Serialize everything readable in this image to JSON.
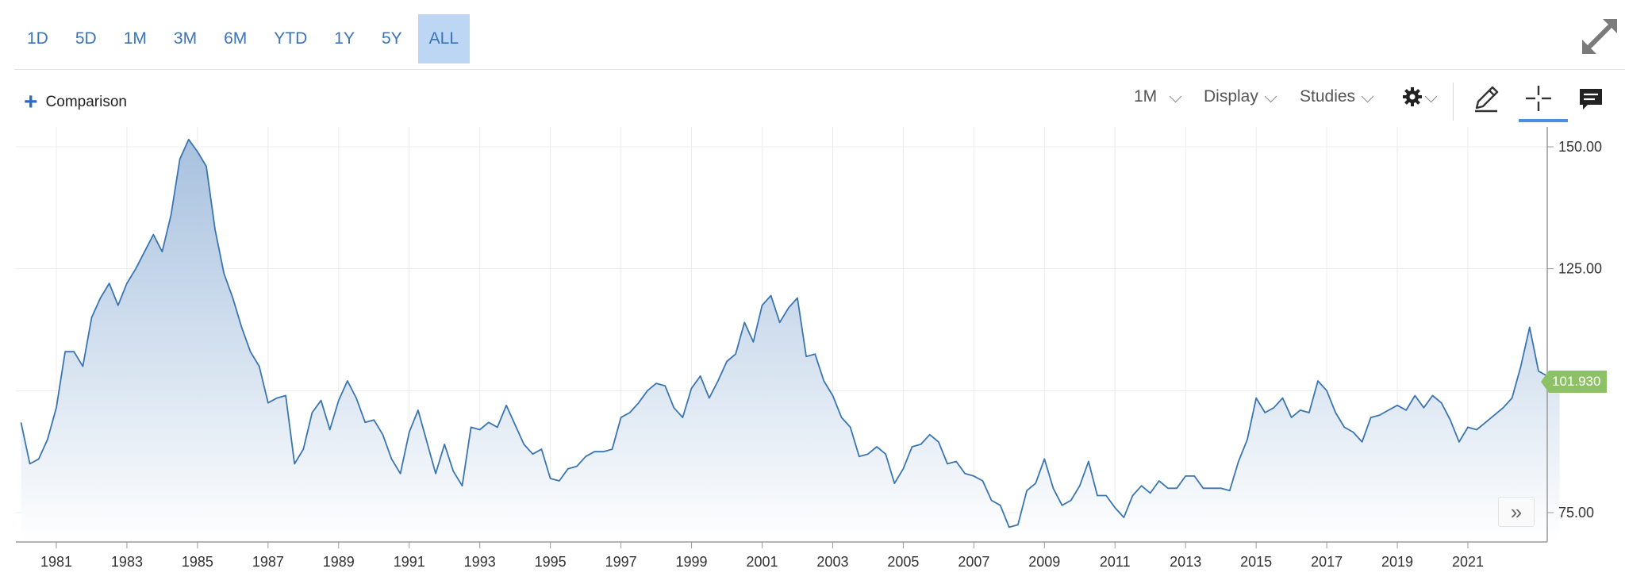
{
  "range_buttons": [
    {
      "label": "1D"
    },
    {
      "label": "5D"
    },
    {
      "label": "1M"
    },
    {
      "label": "3M"
    },
    {
      "label": "6M"
    },
    {
      "label": "YTD"
    },
    {
      "label": "1Y"
    },
    {
      "label": "5Y"
    },
    {
      "label": "ALL",
      "active": true
    }
  ],
  "toolbar": {
    "comparison_label": "Comparison",
    "interval_label": "1M",
    "display_label": "Display",
    "studies_label": "Studies"
  },
  "icons": {
    "expand": "expand-icon",
    "settings": "gear-icon",
    "draw": "pencil-icon",
    "crosshair": "crosshair-icon",
    "comments": "comment-icon",
    "forward": "double-chevron-right-icon"
  },
  "colors": {
    "line": "#3a75b0",
    "fill_top": "#a3bedd",
    "fill_bottom": "#ffffff",
    "accent": "#3b73b9",
    "badge": "#8cc265"
  },
  "last_value_label": "101.930",
  "forward_label": "»",
  "chart_data": {
    "type": "area",
    "title": "",
    "xlabel": "",
    "ylabel": "",
    "x_ticks": [
      "1981",
      "1983",
      "1985",
      "1987",
      "1989",
      "1991",
      "1993",
      "1995",
      "1997",
      "1999",
      "2001",
      "2003",
      "2005",
      "2007",
      "2009",
      "2011",
      "2013",
      "2015",
      "2017",
      "2019",
      "2021"
    ],
    "y_ticks": [
      "150.00",
      "125.00",
      "75.00"
    ],
    "y_range": [
      70,
      155
    ],
    "x_range": [
      1980.0,
      2023.6
    ],
    "grid": true,
    "last_value": 101.93,
    "series": [
      {
        "x": [
          1980.0,
          1980.25,
          1980.5,
          1980.75,
          1981.0,
          1981.25,
          1981.5,
          1981.75,
          1982.0,
          1982.25,
          1982.5,
          1982.75,
          1983.0,
          1983.25,
          1983.5,
          1983.75,
          1984.0,
          1984.25,
          1984.5,
          1984.75,
          1985.0,
          1985.25,
          1985.5,
          1985.75,
          1986.0,
          1986.25,
          1986.5,
          1986.75,
          1987.0,
          1987.25,
          1987.5,
          1987.75,
          1988.0,
          1988.25,
          1988.5,
          1988.75,
          1989.0,
          1989.25,
          1989.5,
          1989.75,
          1990.0,
          1990.25,
          1990.5,
          1990.75,
          1991.0,
          1991.25,
          1991.5,
          1991.75,
          1992.0,
          1992.25,
          1992.5,
          1992.75,
          1993.0,
          1993.25,
          1993.5,
          1993.75,
          1994.0,
          1994.25,
          1994.5,
          1994.75,
          1995.0,
          1995.25,
          1995.5,
          1995.75,
          1996.0,
          1996.25,
          1996.5,
          1996.75,
          1997.0,
          1997.25,
          1997.5,
          1997.75,
          1998.0,
          1998.25,
          1998.5,
          1998.75,
          1999.0,
          1999.25,
          1999.5,
          1999.75,
          2000.0,
          2000.25,
          2000.5,
          2000.75,
          2001.0,
          2001.25,
          2001.5,
          2001.75,
          2002.0,
          2002.25,
          2002.5,
          2002.75,
          2003.0,
          2003.25,
          2003.5,
          2003.75,
          2004.0,
          2004.25,
          2004.5,
          2004.75,
          2005.0,
          2005.25,
          2005.5,
          2005.75,
          2006.0,
          2006.25,
          2006.5,
          2006.75,
          2007.0,
          2007.25,
          2007.5,
          2007.75,
          2008.0,
          2008.25,
          2008.5,
          2008.75,
          2009.0,
          2009.25,
          2009.5,
          2009.75,
          2010.0,
          2010.25,
          2010.5,
          2010.75,
          2011.0,
          2011.25,
          2011.5,
          2011.75,
          2012.0,
          2012.25,
          2012.5,
          2012.75,
          2013.0,
          2013.25,
          2013.5,
          2013.75,
          2014.0,
          2014.25,
          2014.5,
          2014.75,
          2015.0,
          2015.25,
          2015.5,
          2015.75,
          2016.0,
          2016.25,
          2016.5,
          2016.75,
          2017.0,
          2017.25,
          2017.5,
          2017.75,
          2018.0,
          2018.25,
          2018.5,
          2018.75,
          2019.0,
          2019.25,
          2019.5,
          2019.75,
          2020.0,
          2020.25,
          2020.5,
          2020.75,
          2021.0,
          2021.25,
          2021.5,
          2021.75,
          2022.0,
          2022.25,
          2022.5,
          2022.75,
          2023.0,
          2023.25,
          2023.6
        ],
        "y": [
          93.5,
          85.0,
          86.0,
          90.0,
          96.5,
          108.0,
          108.0,
          105.0,
          115.0,
          119.0,
          122.0,
          117.5,
          122.0,
          125.0,
          128.5,
          132.0,
          128.5,
          136.0,
          147.5,
          151.5,
          149.0,
          146.0,
          133.0,
          124.0,
          119.0,
          113.0,
          108.0,
          105.0,
          97.5,
          98.5,
          99.0,
          85.0,
          88.0,
          95.5,
          98.0,
          92.0,
          98.0,
          102.0,
          98.5,
          93.5,
          94.0,
          91.0,
          86.0,
          83.0,
          91.5,
          96.0,
          89.5,
          83.0,
          89.0,
          83.5,
          80.5,
          92.5,
          92.0,
          93.5,
          92.5,
          97.0,
          93.0,
          89.0,
          87.0,
          88.0,
          82.0,
          81.5,
          84.0,
          84.5,
          86.5,
          87.5,
          87.5,
          88.0,
          94.5,
          95.5,
          97.5,
          100.0,
          101.5,
          101.0,
          96.5,
          94.5,
          100.5,
          103.0,
          98.5,
          102.0,
          106.0,
          107.5,
          114.0,
          110.0,
          117.5,
          119.5,
          114.0,
          117.0,
          119.0,
          107.0,
          107.5,
          102.0,
          99.0,
          94.5,
          92.5,
          86.5,
          87.0,
          88.5,
          87.0,
          81.0,
          84.0,
          88.5,
          89.0,
          91.0,
          89.5,
          85.0,
          85.5,
          83.0,
          82.5,
          81.5,
          77.5,
          76.5,
          72.0,
          72.5,
          79.5,
          81.0,
          86.0,
          80.0,
          76.5,
          77.5,
          80.5,
          85.5,
          78.5,
          78.5,
          76.0,
          74.0,
          78.5,
          80.5,
          79.0,
          81.5,
          80.0,
          80.0,
          82.5,
          82.5,
          80.0,
          80.0,
          80.0,
          79.5,
          85.5,
          90.0,
          98.5,
          95.5,
          96.5,
          98.5,
          94.5,
          96.0,
          95.5,
          102.0,
          100.0,
          95.5,
          92.5,
          91.5,
          89.5,
          94.5,
          95.0,
          96.0,
          97.0,
          96.0,
          99.0,
          96.5,
          99.0,
          97.5,
          94.0,
          89.5,
          92.5,
          92.0,
          93.5,
          95.0,
          96.5,
          98.5,
          105.0,
          113.0,
          104.0,
          103.0,
          101.93
        ]
      }
    ]
  }
}
